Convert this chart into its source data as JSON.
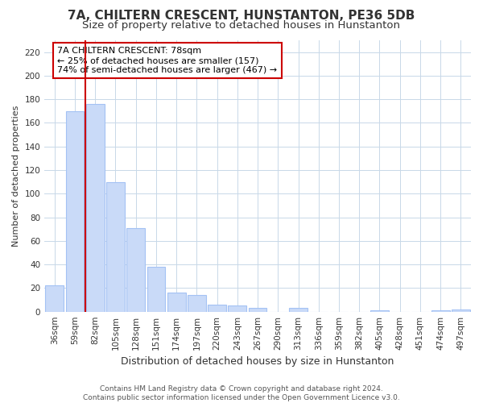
{
  "title": "7A, CHILTERN CRESCENT, HUNSTANTON, PE36 5DB",
  "subtitle": "Size of property relative to detached houses in Hunstanton",
  "xlabel": "Distribution of detached houses by size in Hunstanton",
  "ylabel": "Number of detached properties",
  "categories": [
    "36sqm",
    "59sqm",
    "82sqm",
    "105sqm",
    "128sqm",
    "151sqm",
    "174sqm",
    "197sqm",
    "220sqm",
    "243sqm",
    "267sqm",
    "290sqm",
    "313sqm",
    "336sqm",
    "359sqm",
    "382sqm",
    "405sqm",
    "428sqm",
    "451sqm",
    "474sqm",
    "497sqm"
  ],
  "values": [
    22,
    170,
    176,
    110,
    71,
    38,
    16,
    14,
    6,
    5,
    3,
    0,
    3,
    0,
    0,
    0,
    1,
    0,
    0,
    1,
    2
  ],
  "bar_color": "#c9daf8",
  "bar_edge_color": "#a4c2f4",
  "vline_color": "#cc0000",
  "annotation_title": "7A CHILTERN CRESCENT: 78sqm",
  "annotation_line1": "← 25% of detached houses are smaller (157)",
  "annotation_line2": "74% of semi-detached houses are larger (467) →",
  "box_edge_color": "#cc0000",
  "ylim": [
    0,
    230
  ],
  "yticks": [
    0,
    20,
    40,
    60,
    80,
    100,
    120,
    140,
    160,
    180,
    200,
    220
  ],
  "footer_line1": "Contains HM Land Registry data © Crown copyright and database right 2024.",
  "footer_line2": "Contains public sector information licensed under the Open Government Licence v3.0.",
  "title_fontsize": 11,
  "subtitle_fontsize": 9.5,
  "xlabel_fontsize": 9,
  "ylabel_fontsize": 8,
  "tick_fontsize": 7.5,
  "annotation_fontsize": 8,
  "footer_fontsize": 6.5,
  "background_color": "#ffffff",
  "grid_color": "#c8d8e8"
}
